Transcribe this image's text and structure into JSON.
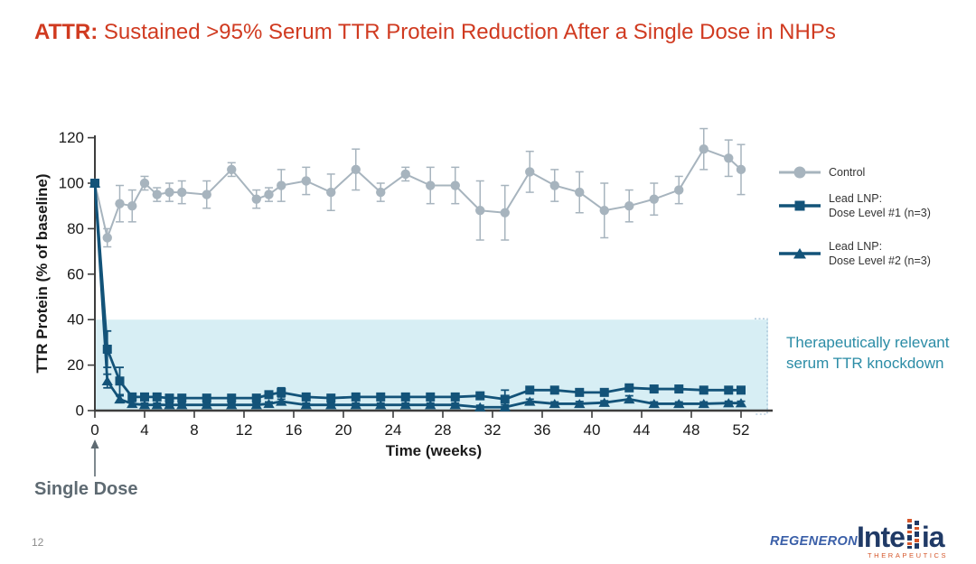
{
  "slide": {
    "title_prefix": "ATTR:",
    "title_rest": " Sustained >95% Serum TTR Protein Reduction After a Single Dose in NHPs",
    "knockdown_label": "Therapeutically relevant serum TTR knockdown",
    "single_dose_label": "Single Dose",
    "page_number": "12"
  },
  "colors": {
    "title": "#D03A20",
    "control_series": "#A7B4BE",
    "lnp_series": "#135379",
    "band_fill": "#D7EEF4",
    "band_bracket": "#A9C4D8",
    "knockdown_text": "#2B8CA6",
    "single_dose_text": "#5E6A72",
    "axis": "#3d3d3d",
    "regeneron_blue": "#3A5FA8",
    "intellia_navy": "#203A66",
    "intellia_orange": "#D5562A",
    "page_number_gray": "#8C8C8C"
  },
  "legend": {
    "items": [
      {
        "marker": "circle",
        "lines": [
          "Control",
          ""
        ]
      },
      {
        "marker": "square",
        "lines": [
          "Lead LNP:",
          "Dose Level #1 (n=3)"
        ]
      },
      {
        "marker": "triangle",
        "lines": [
          "Lead LNP:",
          "Dose Level #2 (n=3)"
        ]
      }
    ]
  },
  "footer": {
    "regeneron": "REGENERON",
    "intellia_part1": "Inte",
    "intellia_part2": "ia",
    "intellia_sub": "THERAPEUTICS"
  },
  "chart_data": {
    "type": "line",
    "title": "",
    "xlabel": "Time (weeks)",
    "ylabel": "TTR Protein (% of baseline)",
    "xlim": [
      0,
      52
    ],
    "ylim": [
      0,
      120
    ],
    "x_ticks": [
      0,
      4,
      8,
      12,
      16,
      20,
      24,
      28,
      32,
      36,
      40,
      44,
      48,
      52
    ],
    "y_ticks": [
      0,
      20,
      40,
      60,
      80,
      100,
      120
    ],
    "grid": false,
    "legend_position": "right",
    "shaded_band": {
      "from": 0,
      "to": 40,
      "color": "#D7EEF4",
      "label": "Therapeutically relevant serum TTR knockdown"
    },
    "annotation": {
      "label": "Single Dose",
      "week": 0
    },
    "x": [
      0,
      1,
      2,
      3,
      4,
      5,
      6,
      7,
      9,
      11,
      13,
      14,
      15,
      17,
      19,
      21,
      23,
      25,
      27,
      29,
      31,
      33,
      35,
      37,
      39,
      41,
      43,
      45,
      47,
      49,
      51,
      52
    ],
    "series": [
      {
        "name": "Control",
        "marker": "circle",
        "color": "#A7B4BE",
        "values": [
          100,
          76,
          91,
          90,
          100,
          95,
          96,
          96,
          95,
          106,
          93,
          95,
          99,
          101,
          96,
          106,
          96,
          104,
          99,
          99,
          88,
          87,
          105,
          99,
          96,
          88,
          90,
          93,
          97,
          115,
          111,
          106
        ],
        "errors": [
          0,
          4,
          8,
          7,
          3,
          3,
          4,
          5,
          6,
          3,
          4,
          3,
          7,
          6,
          8,
          9,
          4,
          3,
          8,
          8,
          13,
          12,
          9,
          7,
          9,
          12,
          7,
          7,
          6,
          9,
          8,
          11
        ]
      },
      {
        "name": "Lead LNP: Dose Level #1 (n=3)",
        "marker": "square",
        "color": "#135379",
        "values": [
          100,
          27,
          13,
          6,
          6,
          6,
          5.5,
          5.5,
          5.5,
          5.5,
          5.5,
          7,
          8,
          6,
          5.5,
          6,
          6,
          6,
          6,
          6,
          6.5,
          5,
          9,
          9,
          8,
          8,
          10,
          9.5,
          9.5,
          9,
          9,
          9
        ],
        "errors": [
          0,
          8,
          6,
          1.5,
          1,
          1,
          1,
          1,
          1,
          1,
          1,
          1.5,
          2,
          1,
          1,
          1,
          1,
          1,
          1.5,
          1,
          1,
          4,
          1.5,
          1,
          1.5,
          1,
          1,
          1,
          1,
          1.5,
          1,
          1
        ]
      },
      {
        "name": "Lead LNP: Dose Level #2 (n=3)",
        "marker": "triangle",
        "color": "#135379",
        "values": [
          100,
          13,
          5,
          3,
          2.5,
          2.5,
          2.5,
          2.5,
          2.5,
          2.5,
          2.5,
          3,
          4,
          2.5,
          2.5,
          2.5,
          2.5,
          2.5,
          2.5,
          2.5,
          1.5,
          1.5,
          4,
          3,
          3,
          3.5,
          5,
          3,
          3,
          3,
          3.3,
          3.3
        ],
        "errors": [
          0,
          3,
          1.5,
          1,
          0.8,
          0.8,
          0.8,
          0.8,
          0.8,
          0.8,
          0.8,
          0.8,
          1,
          0.8,
          0.8,
          0.8,
          0.8,
          0.8,
          0.8,
          0.8,
          0.8,
          1,
          1,
          0.8,
          1,
          0.8,
          1.5,
          0.8,
          0.8,
          0.8,
          0.8,
          0.8
        ]
      }
    ]
  }
}
